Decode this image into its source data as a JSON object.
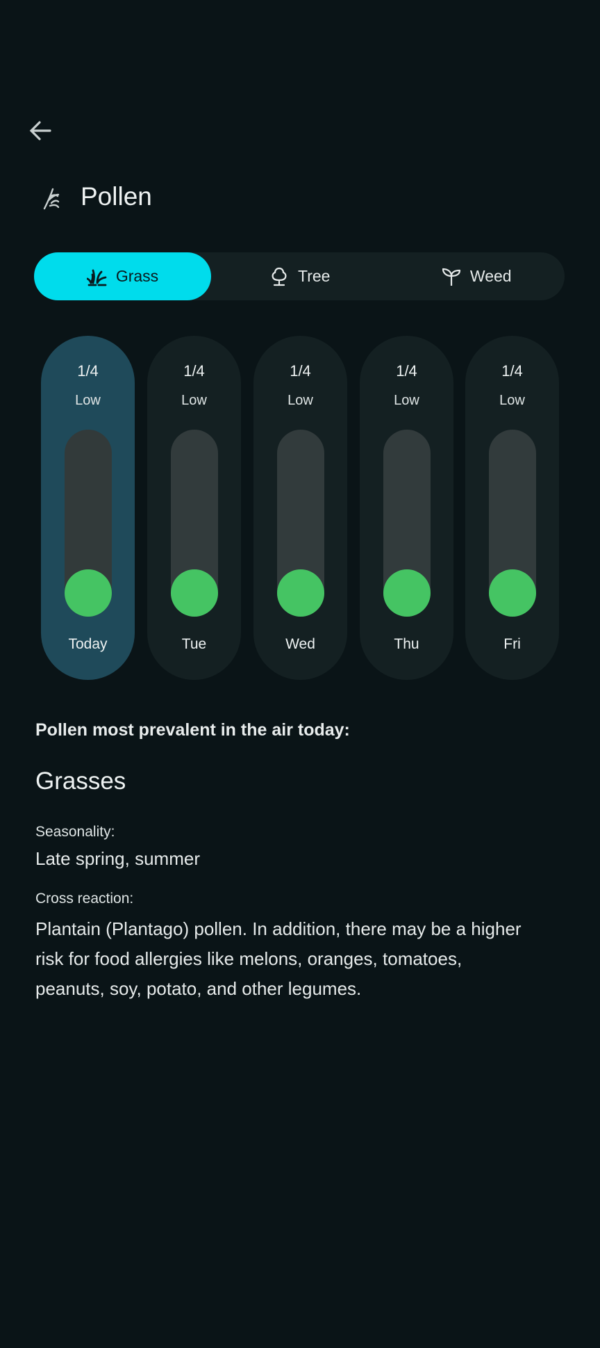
{
  "header": {
    "back_icon": "arrow-left-icon",
    "title": "Pollen",
    "title_icon": "pollen-icon"
  },
  "tabs": [
    {
      "label": "Grass",
      "icon": "grass-icon",
      "selected": true
    },
    {
      "label": "Tree",
      "icon": "tree-icon",
      "selected": false
    },
    {
      "label": "Weed",
      "icon": "sprout-icon",
      "selected": false
    }
  ],
  "days": [
    {
      "index": "1/4",
      "level": "Low",
      "day": "Today",
      "value": 1,
      "max": 4,
      "selected": true
    },
    {
      "index": "1/4",
      "level": "Low",
      "day": "Tue",
      "value": 1,
      "max": 4,
      "selected": false
    },
    {
      "index": "1/4",
      "level": "Low",
      "day": "Wed",
      "value": 1,
      "max": 4,
      "selected": false
    },
    {
      "index": "1/4",
      "level": "Low",
      "day": "Thu",
      "value": 1,
      "max": 4,
      "selected": false
    },
    {
      "index": "1/4",
      "level": "Low",
      "day": "Fri",
      "value": 1,
      "max": 4,
      "selected": false
    }
  ],
  "details": {
    "prevalent_label": "Pollen most prevalent in the air today:",
    "name": "Grasses",
    "seasonality_label": "Seasonality:",
    "seasonality": "Late spring, summer",
    "cross_label": "Cross reaction:",
    "cross": "Plantain (Plantago) pollen. In addition, there may be a higher risk for food allergies like melons, oranges, tomatoes, peanuts, soy, potato, and other legumes."
  },
  "colors": {
    "accent": "#00dcec",
    "level_low": "#45c463",
    "selected_card": "#1f4a5a",
    "background": "#0a1417"
  }
}
